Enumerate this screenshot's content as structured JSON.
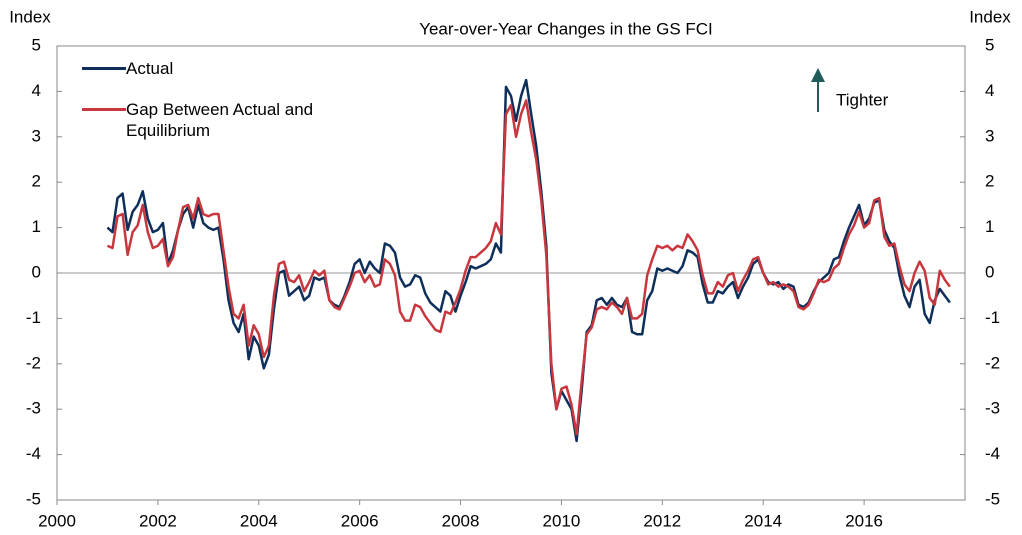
{
  "chart_data": {
    "type": "line",
    "title": "Year-over-Year Changes in the GS FCI",
    "y_label": "Index",
    "y2_label": "Index",
    "annotation": "Tighter",
    "xlim": [
      2000,
      2018
    ],
    "xticks": [
      2000,
      2002,
      2004,
      2006,
      2008,
      2010,
      2012,
      2014,
      2016
    ],
    "ylim": [
      -5,
      5
    ],
    "yticks": [
      -5,
      -4,
      -3,
      -2,
      -1,
      0,
      1,
      2,
      3,
      4,
      5
    ],
    "zero_line": true,
    "legend": "upper left",
    "x": [
      2001,
      2001.1,
      2001.2,
      2001.3,
      2001.4,
      2001.5,
      2001.6,
      2001.7,
      2001.8,
      2001.9,
      2002,
      2002.1,
      2002.2,
      2002.3,
      2002.4,
      2002.5,
      2002.6,
      2002.7,
      2002.8,
      2002.9,
      2003,
      2003.1,
      2003.2,
      2003.3,
      2003.4,
      2003.5,
      2003.6,
      2003.7,
      2003.8,
      2003.9,
      2004,
      2004.1,
      2004.2,
      2004.3,
      2004.4,
      2004.5,
      2004.6,
      2004.7,
      2004.8,
      2004.9,
      2005,
      2005.1,
      2005.2,
      2005.3,
      2005.4,
      2005.5,
      2005.6,
      2005.7,
      2005.8,
      2005.9,
      2006,
      2006.1,
      2006.2,
      2006.3,
      2006.4,
      2006.5,
      2006.6,
      2006.7,
      2006.8,
      2006.9,
      2007,
      2007.1,
      2007.2,
      2007.3,
      2007.4,
      2007.5,
      2007.6,
      2007.7,
      2007.8,
      2007.9,
      2008,
      2008.1,
      2008.2,
      2008.3,
      2008.4,
      2008.5,
      2008.6,
      2008.7,
      2008.8,
      2008.9,
      2009,
      2009.1,
      2009.2,
      2009.3,
      2009.4,
      2009.5,
      2009.6,
      2009.7,
      2009.8,
      2009.9,
      2010,
      2010.1,
      2010.2,
      2010.3,
      2010.4,
      2010.5,
      2010.6,
      2010.7,
      2010.8,
      2010.9,
      2011,
      2011.1,
      2011.2,
      2011.3,
      2011.4,
      2011.5,
      2011.6,
      2011.7,
      2011.8,
      2011.9,
      2012,
      2012.1,
      2012.2,
      2012.3,
      2012.4,
      2012.5,
      2012.6,
      2012.7,
      2012.8,
      2012.9,
      2013,
      2013.1,
      2013.2,
      2013.3,
      2013.4,
      2013.5,
      2013.6,
      2013.7,
      2013.8,
      2013.9,
      2014,
      2014.1,
      2014.2,
      2014.3,
      2014.4,
      2014.5,
      2014.6,
      2014.7,
      2014.8,
      2014.9,
      2015,
      2015.1,
      2015.2,
      2015.3,
      2015.4,
      2015.5,
      2015.6,
      2015.7,
      2015.8,
      2015.9,
      2016,
      2016.1,
      2016.2,
      2016.3,
      2016.4,
      2016.5,
      2016.6,
      2016.7,
      2016.8,
      2016.9,
      2017,
      2017.1,
      2017.2,
      2017.3,
      2017.4,
      2017.5,
      2017.6,
      2017.7
    ],
    "series": [
      {
        "name": "Actual",
        "color": "#0d2f5a",
        "values": [
          1.0,
          0.9,
          1.65,
          1.75,
          0.95,
          1.35,
          1.5,
          1.8,
          1.2,
          0.9,
          0.95,
          1.1,
          0.2,
          0.5,
          0.95,
          1.3,
          1.45,
          1.0,
          1.5,
          1.1,
          1.0,
          0.95,
          1.0,
          0.3,
          -0.6,
          -1.1,
          -1.3,
          -0.9,
          -1.9,
          -1.4,
          -1.6,
          -2.1,
          -1.8,
          -0.8,
          0.0,
          0.05,
          -0.5,
          -0.4,
          -0.3,
          -0.6,
          -0.5,
          -0.1,
          -0.15,
          -0.1,
          -0.6,
          -0.7,
          -0.75,
          -0.5,
          -0.2,
          0.2,
          0.3,
          0.0,
          0.25,
          0.1,
          0.0,
          0.65,
          0.6,
          0.45,
          -0.1,
          -0.3,
          -0.25,
          -0.05,
          -0.1,
          -0.45,
          -0.65,
          -0.75,
          -0.85,
          -0.4,
          -0.5,
          -0.85,
          -0.5,
          -0.2,
          0.15,
          0.1,
          0.15,
          0.2,
          0.3,
          0.65,
          0.45,
          4.1,
          3.9,
          3.35,
          3.9,
          4.25,
          3.5,
          2.8,
          1.8,
          0.6,
          -2.2,
          -3.0,
          -2.6,
          -2.8,
          -3.0,
          -3.7,
          -2.6,
          -1.3,
          -1.15,
          -0.6,
          -0.55,
          -0.7,
          -0.55,
          -0.7,
          -0.75,
          -0.55,
          -1.3,
          -1.35,
          -1.35,
          -0.6,
          -0.4,
          0.1,
          0.05,
          0.1,
          0.05,
          0.0,
          0.15,
          0.5,
          0.45,
          0.35,
          -0.25,
          -0.65,
          -0.65,
          -0.4,
          -0.45,
          -0.3,
          -0.2,
          -0.55,
          -0.3,
          -0.1,
          0.2,
          0.3,
          0.0,
          -0.2,
          -0.25,
          -0.2,
          -0.35,
          -0.25,
          -0.3,
          -0.7,
          -0.75,
          -0.65,
          -0.4,
          -0.2,
          -0.1,
          0.0,
          0.3,
          0.35,
          0.7,
          1.0,
          1.25,
          1.5,
          1.05,
          1.2,
          1.55,
          1.6,
          0.95,
          0.7,
          0.55,
          -0.05,
          -0.5,
          -0.75,
          -0.3,
          -0.15,
          -0.9,
          -1.1,
          -0.6,
          -0.35,
          -0.5,
          -0.65
        ]
      },
      {
        "name": "Gap Between Actual and Equilibrium",
        "color": "#c8373d",
        "values": [
          0.6,
          0.55,
          1.25,
          1.3,
          0.4,
          0.9,
          1.05,
          1.5,
          0.9,
          0.55,
          0.6,
          0.75,
          0.15,
          0.35,
          0.95,
          1.45,
          1.5,
          1.2,
          1.65,
          1.3,
          1.25,
          1.3,
          1.3,
          0.5,
          -0.3,
          -0.9,
          -1.0,
          -0.7,
          -1.6,
          -1.15,
          -1.35,
          -1.85,
          -1.6,
          -0.5,
          0.2,
          0.25,
          -0.15,
          -0.2,
          -0.05,
          -0.4,
          -0.2,
          0.05,
          -0.05,
          0.05,
          -0.6,
          -0.75,
          -0.8,
          -0.55,
          -0.3,
          0.0,
          0.05,
          -0.2,
          -0.05,
          -0.3,
          -0.25,
          0.3,
          0.2,
          -0.05,
          -0.85,
          -1.05,
          -1.05,
          -0.7,
          -0.75,
          -0.95,
          -1.1,
          -1.25,
          -1.3,
          -0.85,
          -0.9,
          -0.65,
          -0.35,
          0.05,
          0.35,
          0.35,
          0.45,
          0.55,
          0.7,
          1.1,
          0.85,
          3.5,
          3.7,
          3.0,
          3.5,
          3.8,
          3.1,
          2.5,
          1.6,
          0.4,
          -2.0,
          -3.0,
          -2.55,
          -2.5,
          -2.9,
          -3.55,
          -2.4,
          -1.35,
          -1.2,
          -0.8,
          -0.75,
          -0.8,
          -0.65,
          -0.75,
          -0.9,
          -0.55,
          -1.0,
          -1.0,
          -0.9,
          -0.05,
          0.3,
          0.6,
          0.55,
          0.6,
          0.5,
          0.6,
          0.55,
          0.85,
          0.7,
          0.5,
          -0.05,
          -0.45,
          -0.45,
          -0.2,
          -0.3,
          -0.05,
          0.0,
          -0.4,
          -0.15,
          0.05,
          0.3,
          0.35,
          0.0,
          -0.25,
          -0.2,
          -0.3,
          -0.25,
          -0.3,
          -0.4,
          -0.75,
          -0.8,
          -0.7,
          -0.45,
          -0.15,
          -0.2,
          -0.15,
          0.1,
          0.2,
          0.55,
          0.85,
          1.05,
          1.35,
          1.0,
          1.1,
          1.6,
          1.65,
          0.8,
          0.6,
          0.65,
          0.15,
          -0.25,
          -0.4,
          0.0,
          0.25,
          0.05,
          -0.55,
          -0.7,
          0.05,
          -0.15,
          -0.3
        ]
      }
    ]
  }
}
